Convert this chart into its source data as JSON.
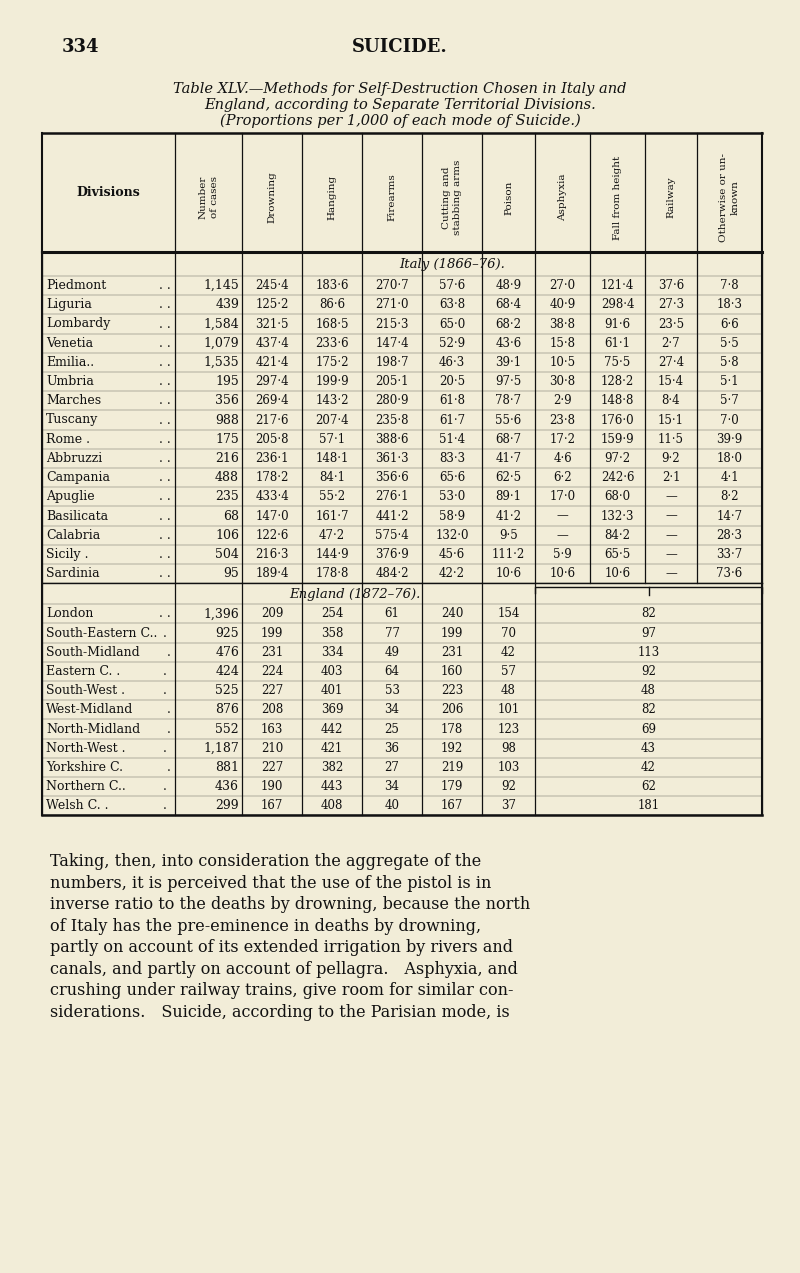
{
  "page_number": "334",
  "page_title": "SUICIDE.",
  "table_title_line1": "Table XLV.—Methods for Self-Destruction Chosen in Italy and",
  "table_title_line2": "England, according to Separate Territorial Divisions.",
  "table_title_line3": "(Proportions per 1,000 of each mode of Suicide.)",
  "italy_section_label": "Italy (1866–76).",
  "italy_rows": [
    [
      "Piedmont",
      ". .",
      "1,145",
      "245·4",
      "183·6",
      "270·7",
      "57·6",
      "48·9",
      "27·0",
      "121·4",
      "37·6",
      "7·8"
    ],
    [
      "Liguria",
      ". .",
      "439",
      "125·2",
      "86·6",
      "271·0",
      "63·8",
      "68·4",
      "40·9",
      "298·4",
      "27·3",
      "18·3"
    ],
    [
      "Lombardy",
      ". .",
      "1,584",
      "321·5",
      "168·5",
      "215·3",
      "65·0",
      "68·2",
      "38·8",
      "91·6",
      "23·5",
      "6·6"
    ],
    [
      "Venetia",
      ". .",
      "1,079",
      "437·4",
      "233·6",
      "147·4",
      "52·9",
      "43·6",
      "15·8",
      "61·1",
      "2·7",
      "5·5"
    ],
    [
      "Emilia..",
      ". .",
      "1,535",
      "421·4",
      "175·2",
      "198·7",
      "46·3",
      "39·1",
      "10·5",
      "75·5",
      "27·4",
      "5·8"
    ],
    [
      "Umbria",
      ". .",
      "195",
      "297·4",
      "199·9",
      "205·1",
      "20·5",
      "97·5",
      "30·8",
      "128·2",
      "15·4",
      "5·1"
    ],
    [
      "Marches",
      ". .",
      "356",
      "269·4",
      "143·2",
      "280·9",
      "61·8",
      "78·7",
      "2·9",
      "148·8",
      "8·4",
      "5·7"
    ],
    [
      "Tuscany",
      ". .",
      "988",
      "217·6",
      "207·4",
      "235·8",
      "61·7",
      "55·6",
      "23·8",
      "176·0",
      "15·1",
      "7·0"
    ],
    [
      "Rome .",
      ". .",
      "175",
      "205·8",
      "57·1",
      "388·6",
      "51·4",
      "68·7",
      "17·2",
      "159·9",
      "11·5",
      "39·9"
    ],
    [
      "Abbruzzi",
      ". .",
      "216",
      "236·1",
      "148·1",
      "361·3",
      "83·3",
      "41·7",
      "4·6",
      "97·2",
      "9·2",
      "18·0"
    ],
    [
      "Campania",
      ". .",
      "488",
      "178·2",
      "84·1",
      "356·6",
      "65·6",
      "62·5",
      "6·2",
      "242·6",
      "2·1",
      "4·1"
    ],
    [
      "Apuglie",
      ". .",
      "235",
      "433·4",
      "55·2",
      "276·1",
      "53·0",
      "89·1",
      "17·0",
      "68·0",
      "—",
      "8·2"
    ],
    [
      "Basilicata",
      ". .",
      "68",
      "147·0",
      "161·7",
      "441·2",
      "58·9",
      "41·2",
      "—",
      "132·3",
      "—",
      "14·7"
    ],
    [
      "Calabria",
      ". .",
      "106",
      "122·6",
      "47·2",
      "575·4",
      "132·0",
      "9·5",
      "—",
      "84·2",
      "—",
      "28·3"
    ],
    [
      "Sicily .",
      ". .",
      "504",
      "216·3",
      "144·9",
      "376·9",
      "45·6",
      "111·2",
      "5·9",
      "65·5",
      "—",
      "33·7"
    ],
    [
      "Sardinia",
      ". .",
      "95",
      "189·4",
      "178·8",
      "484·2",
      "42·2",
      "10·6",
      "10·6",
      "10·6",
      "—",
      "73·6"
    ]
  ],
  "england_section_label": "England (1872–76).",
  "england_rows": [
    [
      "London",
      ". .",
      "1,396",
      "209",
      "254",
      "61",
      "240",
      "154",
      "82"
    ],
    [
      "South-Eastern C..",
      ". ",
      "925",
      "199",
      "358",
      "77",
      "199",
      "70",
      "97"
    ],
    [
      "South-Midland",
      ".",
      "476",
      "231",
      "334",
      "49",
      "231",
      "42",
      "113"
    ],
    [
      "Eastern C. .",
      ". ",
      "424",
      "224",
      "403",
      "64",
      "160",
      "57",
      "92"
    ],
    [
      "South-West .",
      ". ",
      "525",
      "227",
      "401",
      "53",
      "223",
      "48",
      "48"
    ],
    [
      "West-Midland",
      ".",
      "876",
      "208",
      "369",
      "34",
      "206",
      "101",
      "82"
    ],
    [
      "North-Midland",
      ".",
      "552",
      "163",
      "442",
      "25",
      "178",
      "123",
      "69"
    ],
    [
      "North-West .",
      ". ",
      "1,187",
      "210",
      "421",
      "36",
      "192",
      "98",
      "43"
    ],
    [
      "Yorkshire C.",
      ".",
      "881",
      "227",
      "382",
      "27",
      "219",
      "103",
      "42"
    ],
    [
      "Northern C..",
      ". ",
      "436",
      "190",
      "443",
      "34",
      "179",
      "92",
      "62"
    ],
    [
      "Welsh C. .",
      ". ",
      "299",
      "167",
      "408",
      "40",
      "167",
      "37",
      "181"
    ]
  ],
  "bg_color": "#f2edd8",
  "text_color": "#111111",
  "line_color": "#111111",
  "footer_lines": [
    "Taking, then, into consideration the aggregate of the",
    "numbers, it is perceived that the use of the pistol is in",
    "inverse ratio to the deaths by drowning, because the north",
    "of Italy has the pre-eminence in deaths by drowning,",
    "partly on account of its extended irrigation by rivers and",
    "canals, and partly on account of pellagra. Asphyxia, and",
    "crushing under railway trains, give room for similar con-",
    "siderations. Suicide, according to the Parisian mode, is"
  ]
}
